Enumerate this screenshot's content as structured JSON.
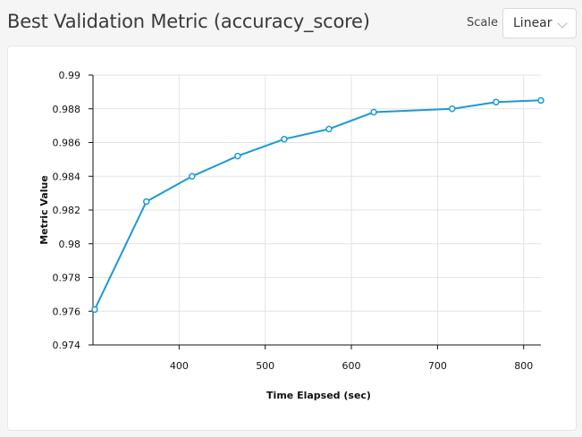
{
  "header": {
    "title": "Best Validation Metric (accuracy_score)",
    "scale_label": "Scale",
    "scale_value": "Linear",
    "chevron_icon": "chevron-down-icon"
  },
  "chart_data": {
    "type": "line",
    "xlabel": "Time Elapsed (sec)",
    "ylabel": "Metric Value",
    "xlim": [
      300,
      820
    ],
    "ylim": [
      0.974,
      0.99
    ],
    "x_ticks": [
      400,
      500,
      600,
      700,
      800
    ],
    "y_ticks": [
      0.974,
      0.976,
      0.978,
      0.98,
      0.982,
      0.984,
      0.986,
      0.988,
      0.99
    ],
    "x_tick_labels": [
      "400",
      "500",
      "600",
      "700",
      "800"
    ],
    "y_tick_labels": [
      "0.974",
      "0.976",
      "0.978",
      "0.98",
      "0.982",
      "0.984",
      "0.986",
      "0.988",
      "0.99"
    ],
    "grid": true,
    "line_color": "#1a9ad6",
    "x": [
      302,
      362,
      415,
      468,
      522,
      574,
      626,
      717,
      768,
      820
    ],
    "y": [
      0.9761,
      0.9825,
      0.984,
      0.9852,
      0.9862,
      0.9868,
      0.9878,
      0.988,
      0.9884,
      0.9885
    ]
  }
}
